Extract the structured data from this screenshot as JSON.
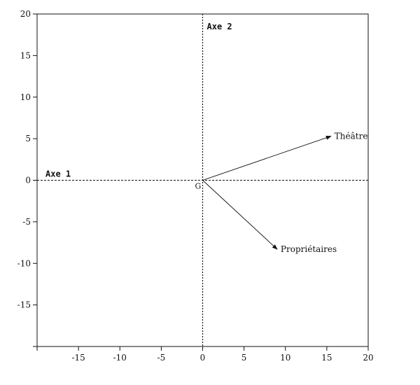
{
  "chart_data": {
    "type": "vector-plot",
    "xlim": [
      -20,
      20
    ],
    "ylim": [
      -20,
      20
    ],
    "x_ticks": [
      -15,
      -10,
      -5,
      0,
      5,
      10,
      15,
      20
    ],
    "y_ticks": [
      20,
      15,
      10,
      5,
      0,
      -5,
      -10,
      -15
    ],
    "axis_labels": {
      "horizontal": "Axe 1",
      "vertical": "Axe 2"
    },
    "origin": {
      "label": "G",
      "x": 0,
      "y": 0
    },
    "vectors": [
      {
        "label": "Théâtre",
        "x": 15.5,
        "y": 5.3
      },
      {
        "label": "Propriétaires",
        "x": 9.0,
        "y": -8.3
      }
    ],
    "grid": false
  }
}
